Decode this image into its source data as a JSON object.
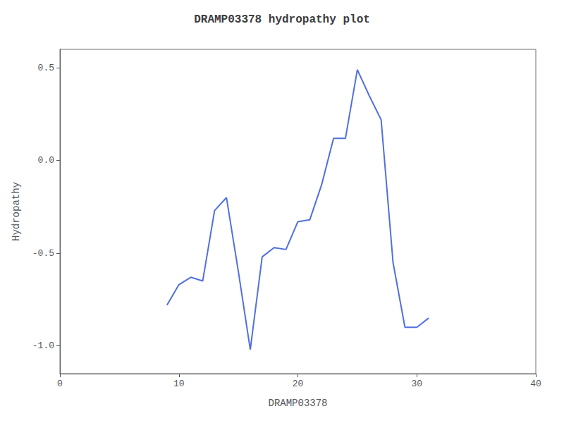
{
  "chart_data": {
    "type": "line",
    "title": "DRAMP03378 hydropathy plot",
    "xlabel": "DRAMP03378",
    "ylabel": "Hydropathy",
    "x": [
      9,
      10,
      11,
      12,
      13,
      14,
      15,
      16,
      17,
      18,
      19,
      20,
      21,
      22,
      23,
      24,
      25,
      26,
      27,
      28,
      29,
      30,
      31
    ],
    "values": [
      -0.78,
      -0.67,
      -0.63,
      -0.65,
      -0.27,
      -0.2,
      -0.6,
      -1.02,
      -0.52,
      -0.47,
      -0.48,
      -0.33,
      -0.32,
      -0.13,
      0.12,
      0.12,
      0.49,
      0.35,
      0.22,
      -0.55,
      -0.9,
      -0.9,
      -0.85
    ],
    "xlim": [
      0,
      40
    ],
    "xticks": [
      0,
      10,
      20,
      30,
      40
    ],
    "ylim": [
      -1.15,
      0.6
    ],
    "yticks": [
      {
        "value": -1.0,
        "label": "-1.0"
      },
      -0.5,
      {
        "value": 0.0,
        "label": "0.0"
      },
      0.5
    ],
    "grid": false
  }
}
